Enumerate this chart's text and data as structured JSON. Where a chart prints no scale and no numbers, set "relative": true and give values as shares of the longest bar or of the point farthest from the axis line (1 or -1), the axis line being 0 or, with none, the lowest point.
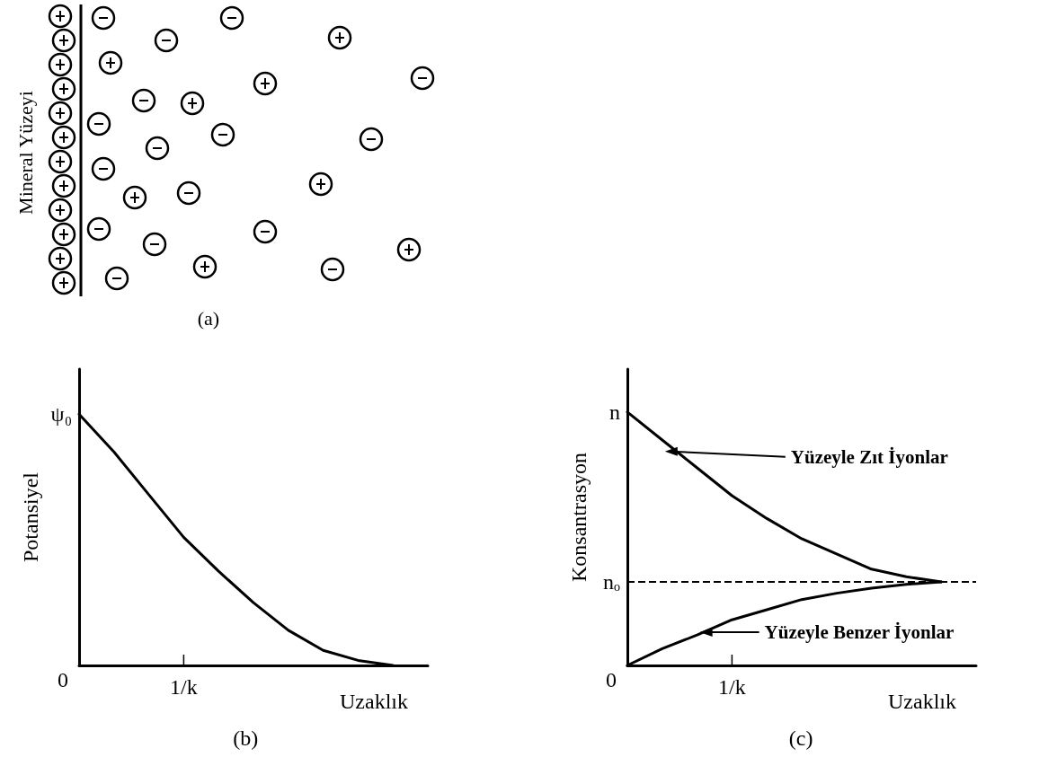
{
  "chart_data": [
    {
      "type": "other",
      "title": "(a)",
      "annotations": [
        "Mineral Yüzeyi"
      ]
    },
    {
      "type": "line",
      "relative": true,
      "title": "(b)",
      "xlabel": "Uzaklık",
      "ylabel": "Potansiyel",
      "categories": [
        null,
        null,
        null,
        null,
        null,
        null,
        null,
        null,
        null,
        null,
        null
      ],
      "series": [
        {
          "color": "#000000",
          "values": [
            1,
            0.85,
            0.68,
            0.51,
            0.375,
            0.25,
            0.14,
            0.06,
            0.02,
            0,
            null
          ]
        }
      ],
      "annotations": [
        "ψ₀",
        "0",
        "1/k"
      ],
      "marker": "none"
    },
    {
      "type": "line",
      "relative": true,
      "title": "(c)",
      "xlabel": "Uzaklık",
      "ylabel": "Konsantrasyon",
      "categories": [
        null,
        null,
        null,
        null,
        null,
        null,
        null,
        null,
        null,
        null,
        null
      ],
      "series": [
        {
          "color": "#000000",
          "values": [
            1,
            0.89,
            0.78,
            0.67,
            0.58,
            0.5,
            0.44,
            0.38,
            0.35,
            0.33,
            null
          ]
        },
        {
          "color": "#000000",
          "values": [
            0,
            0.066,
            0.12,
            0.18,
            0.22,
            0.26,
            0.285,
            0.305,
            0.32,
            0.33,
            null
          ]
        }
      ],
      "ref_lines": [
        {
          "axis": "y",
          "value": 0.33,
          "line_style": "dashed",
          "color": "#000000"
        }
      ],
      "annotations": [
        "n",
        "nₒ",
        "0",
        "1/k",
        "Yüzeyle Zıt İyonlar",
        "Yüzeyle Benzer İyonlar"
      ],
      "marker": "none"
    }
  ]
}
